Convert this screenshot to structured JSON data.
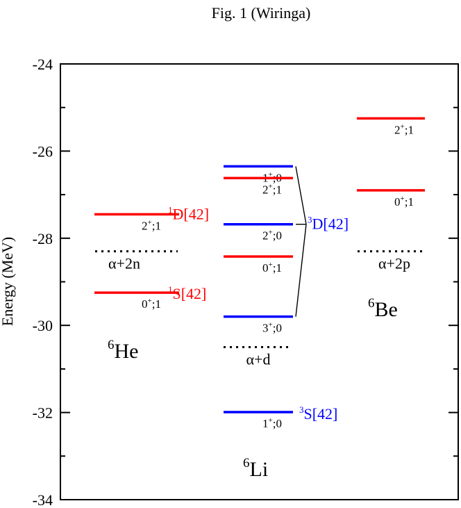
{
  "figure_caption": "Fig. 1 (Wiringa)",
  "colors": {
    "singlet": "#ff0000",
    "triplet": "#0000ff",
    "threshold": "#000000",
    "axis": "#000000"
  },
  "chart_data": {
    "type": "level-diagram",
    "ylabel": "Energy (MeV)",
    "ylim": [
      -34,
      -24
    ],
    "yticks": [
      -24,
      -26,
      -28,
      -30,
      -32,
      -34
    ],
    "ytick_labels": [
      "-24",
      "-26",
      "-28",
      "-30",
      "-32",
      "-34"
    ],
    "minor_tick_step": 1,
    "grid": false,
    "nuclei": [
      {
        "label_sup": "6",
        "label_main": "He",
        "levels": [
          {
            "energy": -27.45,
            "jpt": {
              "j": "2",
              "p": "+",
              "t": ";1"
            },
            "color": "#ff0000"
          },
          {
            "energy": -29.25,
            "jpt": {
              "j": "0",
              "p": "+",
              "t": ";1"
            },
            "color": "#ff0000"
          }
        ],
        "threshold": {
          "energy": -28.3,
          "label": "α+2n"
        }
      },
      {
        "label_sup": "6",
        "label_main": "Li",
        "levels": [
          {
            "energy": -26.35,
            "jpt": {
              "j": "1",
              "p": "+",
              "t": ";0"
            },
            "color": "#0000ff"
          },
          {
            "energy": -26.62,
            "jpt": {
              "j": "2",
              "p": "+",
              "t": ";1"
            },
            "color": "#ff0000"
          },
          {
            "energy": -27.68,
            "jpt": {
              "j": "2",
              "p": "+",
              "t": ";0"
            },
            "color": "#0000ff"
          },
          {
            "energy": -28.42,
            "jpt": {
              "j": "0",
              "p": "+",
              "t": ";1"
            },
            "color": "#ff0000"
          },
          {
            "energy": -29.8,
            "jpt": {
              "j": "3",
              "p": "+",
              "t": ";0"
            },
            "color": "#0000ff"
          },
          {
            "energy": -31.99,
            "jpt": {
              "j": "1",
              "p": "+",
              "t": ";0"
            },
            "color": "#0000ff"
          }
        ],
        "threshold": {
          "energy": -30.5,
          "label": "α+d"
        }
      },
      {
        "label_sup": "6",
        "label_main": "Be",
        "levels": [
          {
            "energy": -25.25,
            "jpt": {
              "j": "2",
              "p": "+",
              "t": ";1"
            },
            "color": "#ff0000"
          },
          {
            "energy": -26.9,
            "jpt": {
              "j": "0",
              "p": "+",
              "t": ";1"
            },
            "color": "#ff0000"
          }
        ],
        "threshold": {
          "energy": -28.3,
          "label": "α+2p"
        }
      }
    ],
    "symmetry_labels": [
      {
        "sup": "1",
        "main": "D[42]",
        "color": "#ff0000",
        "energy": -27.45
      },
      {
        "sup": "1",
        "main": "S[42]",
        "color": "#ff0000",
        "energy": -29.25
      },
      {
        "sup": "3",
        "main": "D[42]",
        "color": "#0000ff",
        "energy": -27.68
      },
      {
        "sup": "3",
        "main": "S[42]",
        "color": "#0000ff",
        "energy": -31.99
      }
    ]
  }
}
